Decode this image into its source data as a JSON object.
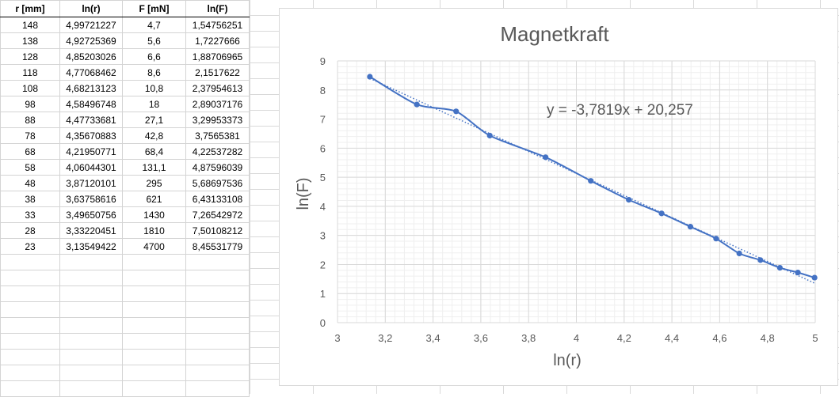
{
  "table": {
    "headers": [
      "r [mm]",
      "ln(r)",
      "F [mN]",
      "ln(F)"
    ],
    "rows": [
      [
        "148",
        "4,99721227",
        "4,7",
        "1,54756251"
      ],
      [
        "138",
        "4,92725369",
        "5,6",
        "1,7227666"
      ],
      [
        "128",
        "4,85203026",
        "6,6",
        "1,88706965"
      ],
      [
        "118",
        "4,77068462",
        "8,6",
        "2,1517622"
      ],
      [
        "108",
        "4,68213123",
        "10,8",
        "2,37954613"
      ],
      [
        "98",
        "4,58496748",
        "18",
        "2,89037176"
      ],
      [
        "88",
        "4,47733681",
        "27,1",
        "3,29953373"
      ],
      [
        "78",
        "4,35670883",
        "42,8",
        "3,7565381"
      ],
      [
        "68",
        "4,21950771",
        "68,4",
        "4,22537282"
      ],
      [
        "58",
        "4,06044301",
        "131,1",
        "4,87596039"
      ],
      [
        "48",
        "3,87120101",
        "295",
        "5,68697536"
      ],
      [
        "38",
        "3,63758616",
        "621",
        "6,43133108"
      ],
      [
        "33",
        "3,49650756",
        "1430",
        "7,26542972"
      ],
      [
        "28",
        "3,33220451",
        "1810",
        "7,50108212"
      ],
      [
        "23",
        "3,13549422",
        "4700",
        "8,45531779"
      ]
    ]
  },
  "chart_data": {
    "type": "scatter",
    "title": "Magnetkraft",
    "xlabel": "ln(r)",
    "ylabel": "ln(F)",
    "xlim": [
      3,
      5
    ],
    "ylim": [
      0,
      9
    ],
    "x_ticks": [
      "3",
      "3,2",
      "3,4",
      "3,6",
      "3,8",
      "4",
      "4,2",
      "4,4",
      "4,6",
      "4,8",
      "5"
    ],
    "y_ticks": [
      "0",
      "1",
      "2",
      "3",
      "4",
      "5",
      "6",
      "7",
      "8",
      "9"
    ],
    "grid": true,
    "series": [
      {
        "x": [
          4.99721227,
          4.92725369,
          4.85203026,
          4.77068462,
          4.68213123,
          4.58496748,
          4.47733681,
          4.35670883,
          4.21950771,
          4.06044301,
          3.87120101,
          3.63758616,
          3.49650756,
          3.33220451,
          3.13549422
        ],
        "y": [
          1.54756251,
          1.7227666,
          1.88706965,
          2.1517622,
          2.37954613,
          2.89037176,
          3.29953373,
          3.7565381,
          4.22537282,
          4.87596039,
          5.68697536,
          6.43133108,
          7.26542972,
          7.50108212,
          8.45531779
        ],
        "color": "#4472c4",
        "markers": true,
        "line": "smooth"
      }
    ],
    "trendline": {
      "slope": -3.7819,
      "intercept": 20.257,
      "equation": "y = -3,7819x + 20,257",
      "style": "dotted"
    }
  }
}
